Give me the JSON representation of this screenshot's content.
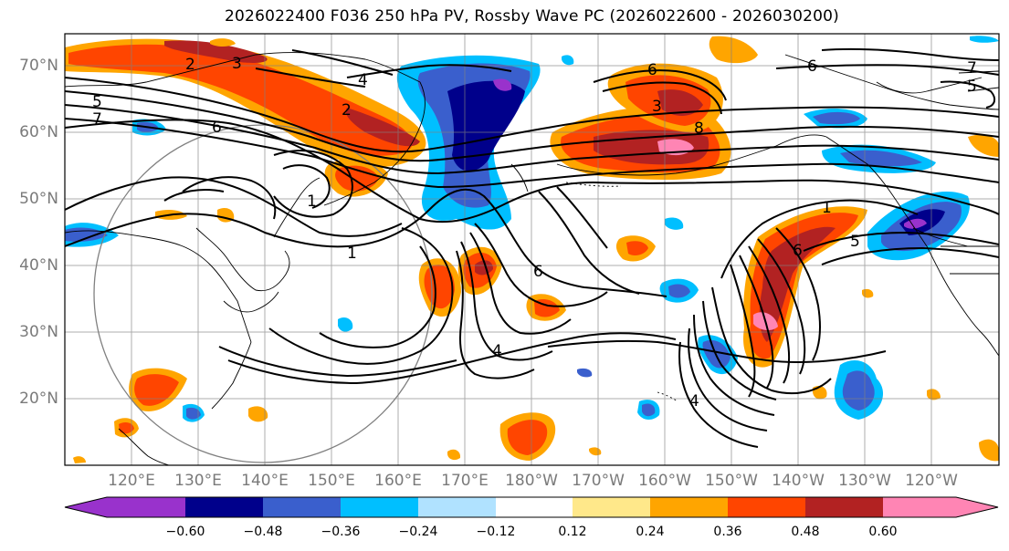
{
  "title": "2026022400 F036 250 hPa PV, Rossby Wave PC (2026022600 - 2026030200)",
  "lat_labels": [
    "70°N",
    "60°N",
    "50°N",
    "40°N",
    "30°N",
    "20°N"
  ],
  "lon_labels": [
    "120°E",
    "130°E",
    "140°E",
    "150°E",
    "160°E",
    "170°E",
    "180°W",
    "170°W",
    "160°W",
    "150°W",
    "140°W",
    "130°W",
    "120°W"
  ],
  "colorbar": {
    "colors": [
      "#9932cc",
      "#00008b",
      "#3a5fcd",
      "#00bfff",
      "#b0e2ff",
      "#ffffff",
      "#ffe88a",
      "#ffa500",
      "#ff4500",
      "#b22222",
      "#ff85b4"
    ],
    "labels": [
      "−0.60",
      "−0.48",
      "−0.36",
      "−0.24",
      "−0.12",
      "0.12",
      "0.24",
      "0.36",
      "0.48",
      "0.60"
    ]
  },
  "contour_labels": [
    "2",
    "3",
    "4",
    "5",
    "7",
    "6",
    "2",
    "1",
    "1",
    "4",
    "3",
    "6",
    "8",
    "6",
    "7",
    "1",
    "6",
    "5",
    "5",
    "4",
    "6"
  ],
  "fill_colors": {
    "orange": "#ffa500",
    "red_orange": "#ff4500",
    "dark_red": "#b22222",
    "pink": "#ff85b4",
    "light_blue": "#00bfff",
    "medium_blue": "#3a5fcd",
    "dark_blue": "#00008b",
    "purple": "#9932cc"
  }
}
